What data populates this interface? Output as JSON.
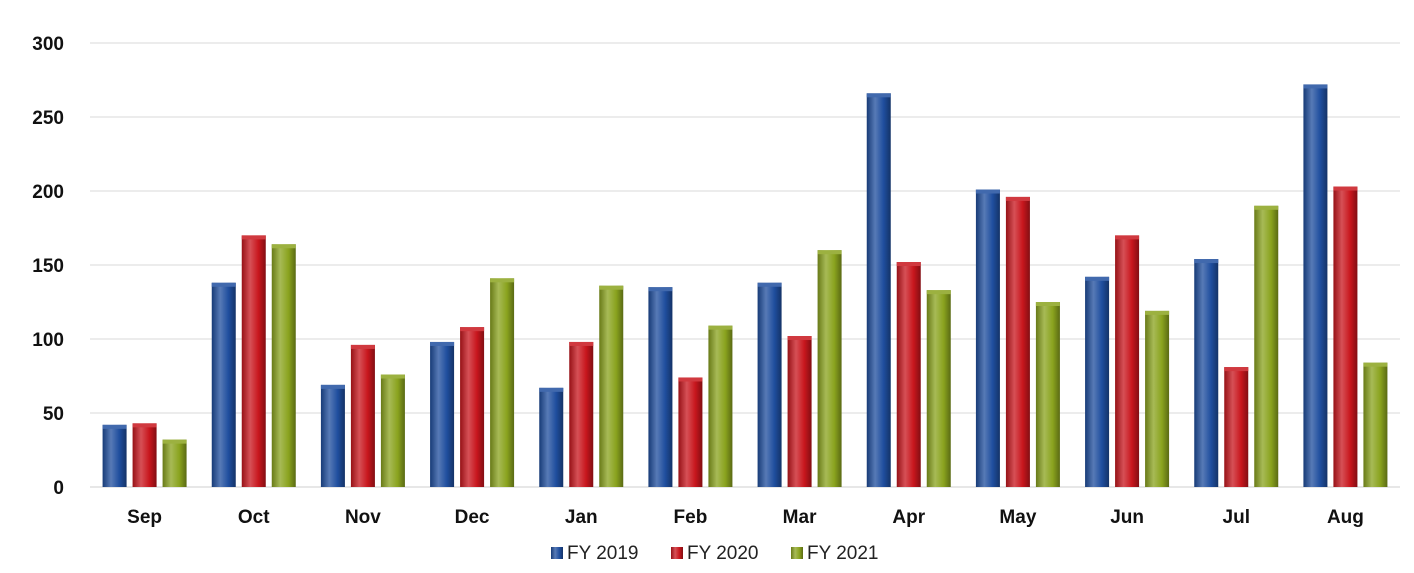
{
  "chart_data": {
    "type": "bar",
    "title": "",
    "xlabel": "",
    "ylabel": "",
    "categories": [
      "Sep",
      "Oct",
      "Nov",
      "Dec",
      "Jan",
      "Feb",
      "Mar",
      "Apr",
      "May",
      "Jun",
      "Jul",
      "Aug"
    ],
    "series": [
      {
        "name": "FY 2019",
        "color": "#1f4e9e",
        "values": [
          42,
          138,
          69,
          98,
          67,
          135,
          138,
          266,
          201,
          142,
          154,
          272
        ]
      },
      {
        "name": "FY 2020",
        "color": "#c8161d",
        "values": [
          43,
          170,
          96,
          108,
          98,
          74,
          102,
          152,
          196,
          170,
          81,
          203
        ]
      },
      {
        "name": "FY 2021",
        "color": "#8aa31e",
        "values": [
          32,
          164,
          76,
          141,
          136,
          109,
          160,
          133,
          125,
          119,
          190,
          84
        ]
      }
    ],
    "ylim": [
      0,
      300
    ],
    "yticks": [
      0,
      50,
      100,
      150,
      200,
      250,
      300
    ],
    "grid": true,
    "legend_position": "bottom"
  }
}
